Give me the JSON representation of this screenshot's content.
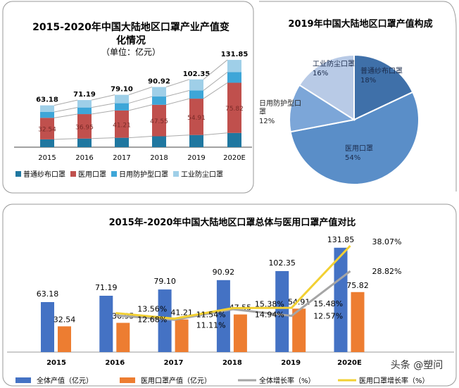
{
  "colors": {
    "gauze": "#1f77a0",
    "medical": "#c0504d",
    "daily": "#3ea6d8",
    "industrial": "#9fcfe8",
    "total_bar": "#4472c4",
    "medical_bar": "#ed7d31",
    "total_growth": "#a5a5a5",
    "medical_growth": "#f2d033",
    "pie_gauze": "#3f70a9",
    "pie_medical": "#5a8ec8",
    "pie_daily": "#7ca6d8",
    "pie_industrial": "#b8cae6"
  },
  "chart_data": [
    {
      "type": "bar",
      "stacked": true,
      "title": "2015-2020年中国大陆地区口罩产业产值变化情况",
      "title_line1": "2015-2020年中国大陆地区口罩产业产值变",
      "title_line2": "化情况",
      "subtitle": "（单位：亿元）",
      "categories": [
        "2015",
        "2016",
        "2017",
        "2018",
        "2019",
        "2020E"
      ],
      "totals": [
        "63.18",
        "71.19",
        "79.10",
        "90.92",
        "102.35",
        "131.85"
      ],
      "series": [
        {
          "name": "普通纱布口罩",
          "values": [
            11.8,
            13.0,
            14.2,
            16.5,
            18.4,
            21.5
          ]
        },
        {
          "name": "医用口罩",
          "values": [
            32.54,
            36.95,
            41.21,
            47.55,
            54.91,
            75.82
          ],
          "labels": [
            "32.54",
            "36.95",
            "41.21",
            "47.55",
            "54.91",
            "75.82"
          ]
        },
        {
          "name": "日用防护型口罩",
          "values": [
            8.9,
            10.0,
            11.0,
            12.5,
            12.3,
            16.0
          ]
        },
        {
          "name": "工业防尘口罩",
          "values": [
            9.94,
            11.24,
            12.69,
            14.37,
            16.74,
            18.53
          ]
        }
      ],
      "legend_position": "bottom"
    },
    {
      "type": "pie",
      "title": "2019年中国大陆地区口罩产值构成",
      "slices": [
        {
          "name": "普通纱布口罩",
          "value": 18,
          "label": "18%"
        },
        {
          "name": "医用口罩",
          "value": 54,
          "label": "54%"
        },
        {
          "name": "日用防护型口罩",
          "value": 12,
          "label": "12%",
          "name_line1": "日用防护型口",
          "name_line2": "罩"
        },
        {
          "name": "工业防尘口罩",
          "value": 16,
          "label": "16%"
        }
      ]
    },
    {
      "type": "bar",
      "title": "2015年-2020年中国大陆地区口罩总体与医用口罩产值对比",
      "categories": [
        "2015",
        "2016",
        "2017",
        "2018",
        "2019",
        "2020E"
      ],
      "series": [
        {
          "name": "全体产值（亿元）",
          "kind": "bar",
          "values": [
            63.18,
            71.19,
            79.1,
            90.92,
            102.35,
            131.85
          ],
          "labels": [
            "63.18",
            "71.19",
            "79.10",
            "90.92",
            "102.35",
            "131.85"
          ]
        },
        {
          "name": "医用口罩产值（亿元）",
          "kind": "bar",
          "values": [
            32.54,
            36.95,
            41.21,
            47.55,
            54.91,
            75.82
          ],
          "labels": [
            "32.54",
            "36.95",
            "41.21",
            "47.55",
            "54.91",
            "75.82"
          ]
        },
        {
          "name": "全体增长率（%）",
          "kind": "line",
          "values": [
            null,
            12.68,
            11.11,
            14.94,
            12.57,
            28.82
          ],
          "labels": [
            "",
            "12.68%",
            "11.11%",
            "14.94%",
            "12.57%",
            "28.82%"
          ]
        },
        {
          "name": "医用口罩增长率（%）",
          "kind": "line",
          "values": [
            null,
            13.56,
            11.54,
            15.38,
            15.48,
            38.07
          ],
          "labels": [
            "",
            "13.56%",
            "11.54%",
            "15.38%",
            "15.48%",
            "38.07%"
          ]
        }
      ],
      "legend_position": "bottom"
    }
  ],
  "watermark": "头条 @塑问"
}
